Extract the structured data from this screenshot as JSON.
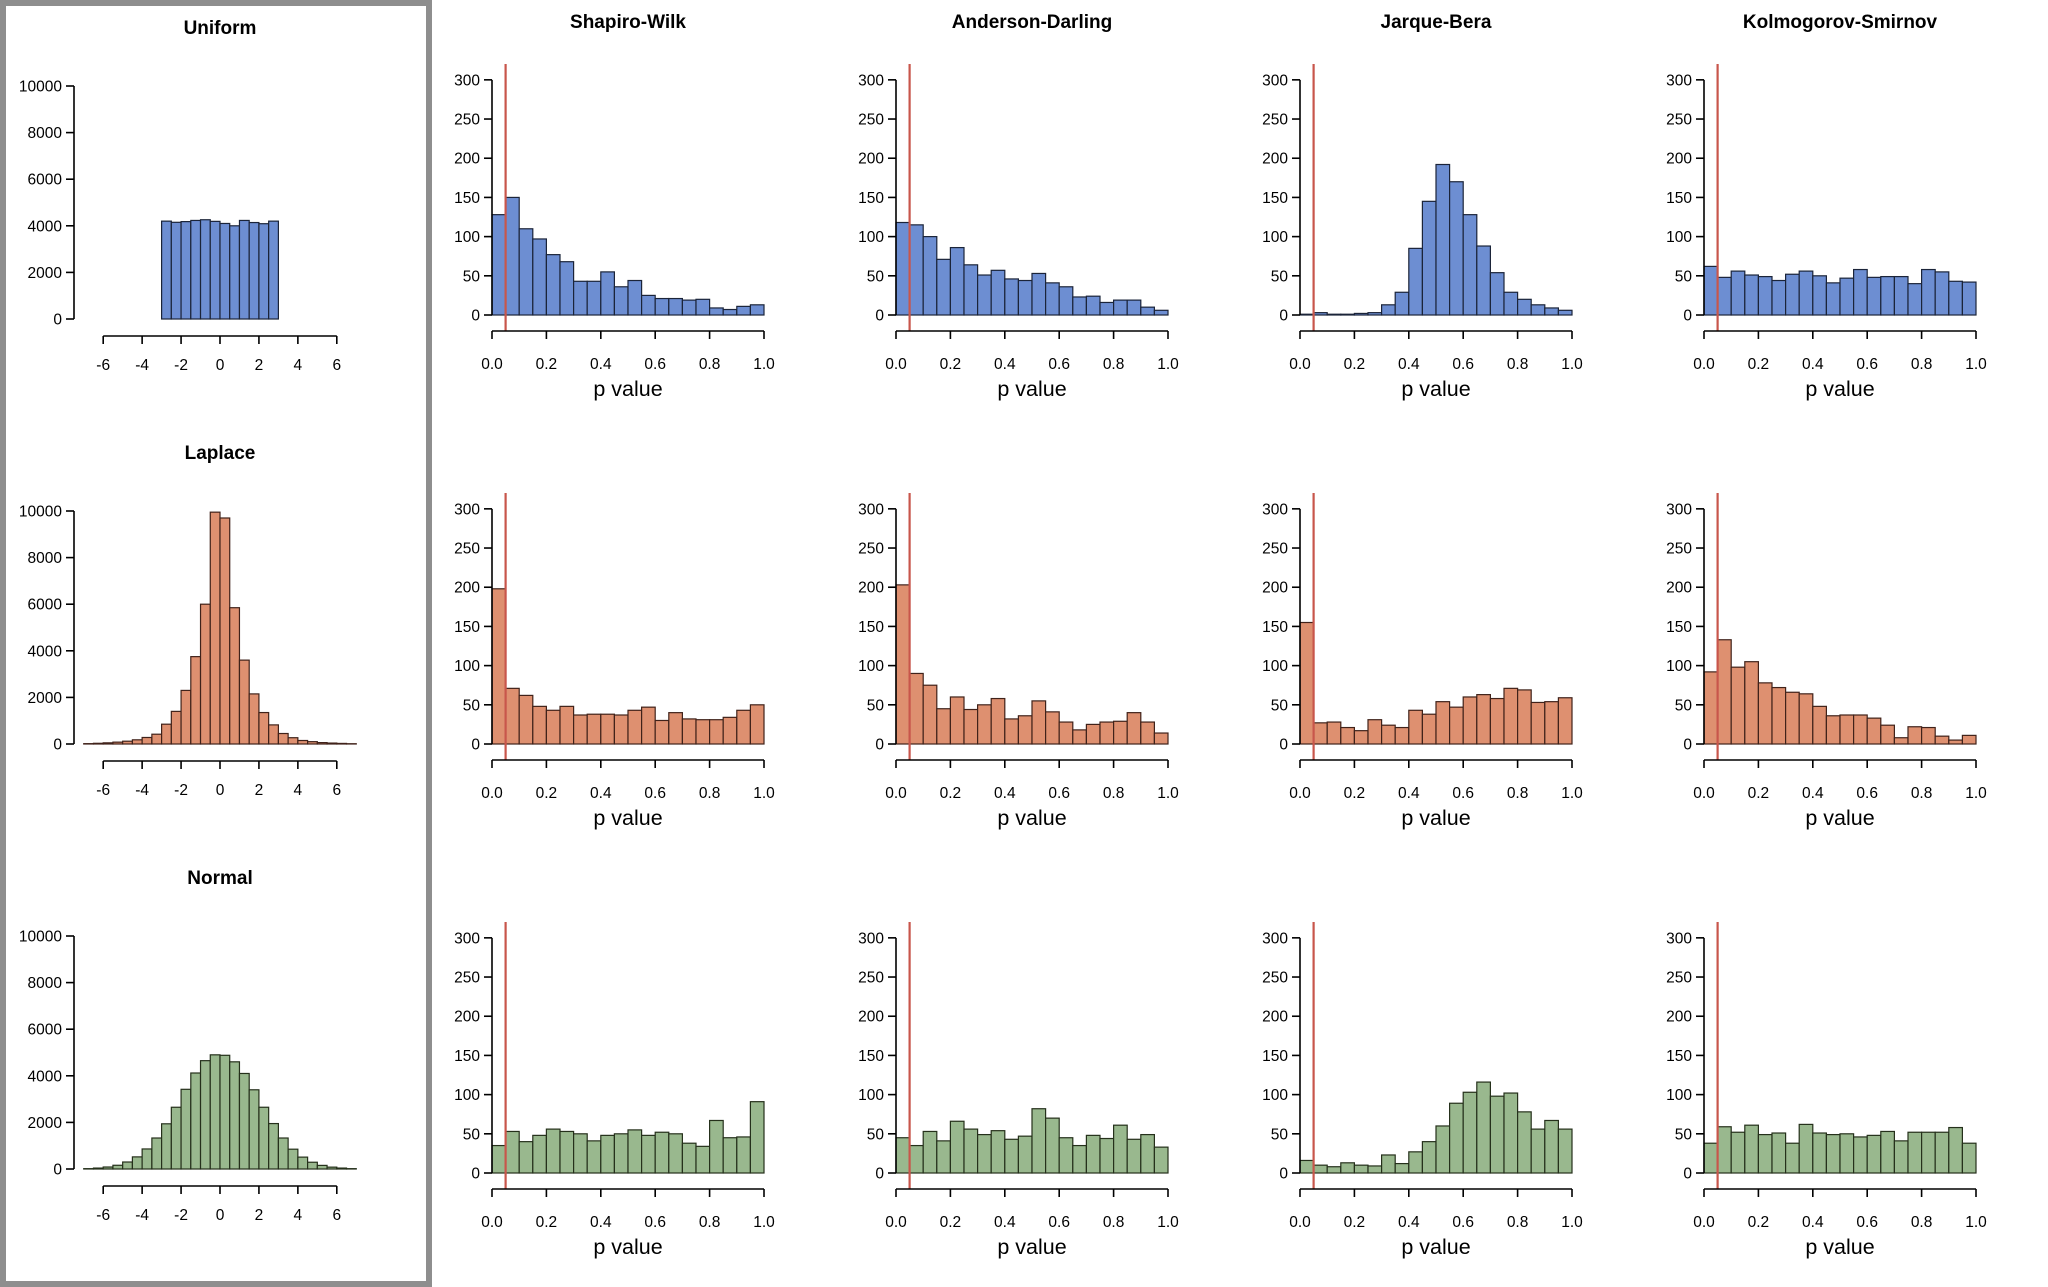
{
  "figure": {
    "background": "#ffffff",
    "reference_frame_color": "#8e8e8e",
    "alpha_line_color": "#c8564b",
    "axis_color": "#000000",
    "row_labels": [
      "Uniform",
      "Laplace",
      "Normal"
    ],
    "test_labels": [
      "Shapiro-Wilk",
      "Anderson-Darling",
      "Jarque-Bera",
      "Kolmogorov-Smirnov"
    ],
    "p_value_axis_label": "p value"
  },
  "axes": {
    "dist": {
      "xlim": [
        -7.5,
        7.5
      ],
      "ylim": [
        0,
        10000
      ],
      "xtick_labels": [
        "-6",
        "-4",
        "-2",
        "0",
        "2",
        "4",
        "6"
      ],
      "ytick_labels": [
        "0",
        "2000",
        "4000",
        "6000",
        "8000",
        "10000"
      ]
    },
    "pval": {
      "xlim": [
        0,
        1
      ],
      "ylim": [
        0,
        310
      ],
      "xtick_labels": [
        "0.0",
        "0.2",
        "0.4",
        "0.6",
        "0.8",
        "1.0"
      ],
      "ytick_labels": [
        "0",
        "50",
        "100",
        "150",
        "200",
        "250",
        "300"
      ]
    }
  },
  "chart_data": [
    {
      "id": "uniform-distribution",
      "type": "bar",
      "row": "Uniform",
      "profile": "dist",
      "title": "Uniform",
      "fill": "#6d8ed2",
      "stroke": "#1b2439",
      "bin_start": -3,
      "bin_width": 0.5,
      "values": [
        4200,
        4150,
        4180,
        4230,
        4260,
        4190,
        4100,
        4000,
        4230,
        4140,
        4090,
        4200
      ]
    },
    {
      "id": "uniform-shapiro-wilk",
      "type": "bar",
      "row": "Uniform",
      "col": "Shapiro-Wilk",
      "profile": "pval",
      "title": "Shapiro-Wilk",
      "xlabel": "p value",
      "vline_x": 0.05,
      "fill": "#6d8ed2",
      "stroke": "#1b2439",
      "bin_start": 0,
      "bin_width": 0.05,
      "values": [
        128,
        150,
        110,
        97,
        77,
        68,
        43,
        43,
        55,
        36,
        44,
        25,
        21,
        21,
        19,
        20,
        9,
        7,
        11,
        13
      ]
    },
    {
      "id": "uniform-anderson-darling",
      "type": "bar",
      "row": "Uniform",
      "col": "Anderson-Darling",
      "profile": "pval",
      "title": "Anderson-Darling",
      "xlabel": "p value",
      "vline_x": 0.05,
      "fill": "#6d8ed2",
      "stroke": "#1b2439",
      "bin_start": 0,
      "bin_width": 0.05,
      "values": [
        118,
        115,
        100,
        71,
        86,
        64,
        51,
        57,
        46,
        44,
        53,
        41,
        36,
        23,
        24,
        16,
        19,
        19,
        10,
        6
      ]
    },
    {
      "id": "uniform-jarque-bera",
      "type": "bar",
      "row": "Uniform",
      "col": "Jarque-Bera",
      "profile": "pval",
      "title": "Jarque-Bera",
      "xlabel": "p value",
      "vline_x": 0.05,
      "fill": "#6d8ed2",
      "stroke": "#1b2439",
      "bin_start": 0,
      "bin_width": 0.05,
      "values": [
        1,
        3,
        1,
        1,
        2,
        3,
        13,
        29,
        85,
        145,
        192,
        170,
        128,
        88,
        54,
        29,
        20,
        13,
        9,
        6
      ]
    },
    {
      "id": "uniform-kolmogorov-smirnov",
      "type": "bar",
      "row": "Uniform",
      "col": "Kolmogorov-Smirnov",
      "profile": "pval",
      "title": "Kolmogorov-Smirnov",
      "xlabel": "p value",
      "vline_x": 0.05,
      "fill": "#6d8ed2",
      "stroke": "#1b2439",
      "bin_start": 0,
      "bin_width": 0.05,
      "values": [
        62,
        48,
        56,
        51,
        49,
        44,
        52,
        56,
        50,
        41,
        47,
        58,
        48,
        49,
        49,
        40,
        58,
        55,
        43,
        42
      ]
    },
    {
      "id": "laplace-distribution",
      "type": "bar",
      "row": "Laplace",
      "profile": "dist",
      "title": "Laplace",
      "fill": "#de9070",
      "stroke": "#40221a",
      "bin_start": -7,
      "bin_width": 0.5,
      "values": [
        15,
        30,
        50,
        80,
        120,
        180,
        280,
        420,
        850,
        1400,
        2300,
        3750,
        6000,
        9950,
        9700,
        5850,
        3600,
        2150,
        1350,
        820,
        450,
        270,
        150,
        100,
        60,
        40,
        25,
        12
      ]
    },
    {
      "id": "laplace-shapiro-wilk",
      "type": "bar",
      "row": "Laplace",
      "col": "Shapiro-Wilk",
      "profile": "pval",
      "xlabel": "p value",
      "vline_x": 0.05,
      "fill": "#de9070",
      "stroke": "#40221a",
      "bin_start": 0,
      "bin_width": 0.05,
      "values": [
        198,
        71,
        62,
        48,
        43,
        48,
        37,
        38,
        38,
        37,
        43,
        47,
        30,
        40,
        32,
        31,
        31,
        34,
        43,
        50
      ]
    },
    {
      "id": "laplace-anderson-darling",
      "type": "bar",
      "row": "Laplace",
      "col": "Anderson-Darling",
      "profile": "pval",
      "xlabel": "p value",
      "vline_x": 0.05,
      "fill": "#de9070",
      "stroke": "#40221a",
      "bin_start": 0,
      "bin_width": 0.05,
      "values": [
        203,
        90,
        75,
        45,
        60,
        44,
        50,
        58,
        32,
        36,
        55,
        41,
        28,
        18,
        25,
        28,
        29,
        40,
        28,
        14
      ]
    },
    {
      "id": "laplace-jarque-bera",
      "type": "bar",
      "row": "Laplace",
      "col": "Jarque-Bera",
      "profile": "pval",
      "xlabel": "p value",
      "vline_x": 0.05,
      "fill": "#de9070",
      "stroke": "#40221a",
      "bin_start": 0,
      "bin_width": 0.05,
      "values": [
        155,
        27,
        28,
        21,
        17,
        31,
        24,
        21,
        43,
        38,
        54,
        47,
        60,
        63,
        58,
        71,
        69,
        53,
        54,
        59
      ]
    },
    {
      "id": "laplace-kolmogorov-smirnov",
      "type": "bar",
      "row": "Laplace",
      "col": "Kolmogorov-Smirnov",
      "profile": "pval",
      "xlabel": "p value",
      "vline_x": 0.05,
      "fill": "#de9070",
      "stroke": "#40221a",
      "bin_start": 0,
      "bin_width": 0.05,
      "values": [
        92,
        133,
        98,
        105,
        78,
        72,
        66,
        64,
        48,
        36,
        37,
        37,
        33,
        24,
        8,
        22,
        21,
        10,
        5,
        11
      ]
    },
    {
      "id": "normal-distribution",
      "type": "bar",
      "row": "Normal",
      "profile": "dist",
      "title": "Normal",
      "fill": "#99b88e",
      "stroke": "#25301b",
      "bin_start": -7,
      "bin_width": 0.5,
      "values": [
        15,
        40,
        85,
        160,
        300,
        520,
        860,
        1330,
        1940,
        2650,
        3420,
        4120,
        4650,
        4900,
        4880,
        4600,
        4100,
        3400,
        2650,
        1950,
        1330,
        850,
        510,
        290,
        155,
        80,
        40,
        15
      ]
    },
    {
      "id": "normal-shapiro-wilk",
      "type": "bar",
      "row": "Normal",
      "col": "Shapiro-Wilk",
      "profile": "pval",
      "xlabel": "p value",
      "vline_x": 0.05,
      "fill": "#99b88e",
      "stroke": "#25301b",
      "bin_start": 0,
      "bin_width": 0.05,
      "values": [
        35,
        53,
        40,
        48,
        56,
        53,
        50,
        41,
        48,
        50,
        55,
        48,
        52,
        50,
        38,
        34,
        67,
        45,
        46,
        91
      ]
    },
    {
      "id": "normal-anderson-darling",
      "type": "bar",
      "row": "Normal",
      "col": "Anderson-Darling",
      "profile": "pval",
      "xlabel": "p value",
      "vline_x": 0.05,
      "fill": "#99b88e",
      "stroke": "#25301b",
      "bin_start": 0,
      "bin_width": 0.05,
      "values": [
        45,
        35,
        53,
        41,
        66,
        56,
        49,
        54,
        43,
        47,
        82,
        70,
        45,
        35,
        48,
        44,
        61,
        43,
        49,
        33
      ]
    },
    {
      "id": "normal-jarque-bera",
      "type": "bar",
      "row": "Normal",
      "col": "Jarque-Bera",
      "profile": "pval",
      "xlabel": "p value",
      "vline_x": 0.05,
      "fill": "#99b88e",
      "stroke": "#25301b",
      "bin_start": 0,
      "bin_width": 0.05,
      "values": [
        16,
        10,
        8,
        13,
        10,
        9,
        23,
        12,
        27,
        40,
        60,
        89,
        103,
        116,
        98,
        102,
        78,
        56,
        67,
        56
      ]
    },
    {
      "id": "normal-kolmogorov-smirnov",
      "type": "bar",
      "row": "Normal",
      "col": "Kolmogorov-Smirnov",
      "profile": "pval",
      "xlabel": "p value",
      "vline_x": 0.05,
      "fill": "#99b88e",
      "stroke": "#25301b",
      "bin_start": 0,
      "bin_width": 0.05,
      "values": [
        38,
        59,
        52,
        61,
        49,
        51,
        38,
        62,
        51,
        49,
        50,
        46,
        48,
        53,
        41,
        52,
        52,
        52,
        58,
        38
      ]
    }
  ]
}
